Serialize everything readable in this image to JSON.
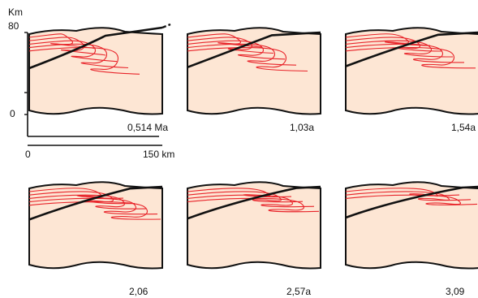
{
  "axes": {
    "y_unit": "Km",
    "y_top": "80",
    "y_bottom": "0",
    "scale_start": "0",
    "scale_end": "150 km"
  },
  "panels": [
    {
      "label": "0,514 Ma",
      "contours": 5,
      "stage": 0
    },
    {
      "label": "1,03a",
      "contours": 5,
      "stage": 1
    },
    {
      "label": "1,54a",
      "contours": 5,
      "stage": 2
    },
    {
      "label": "2,06",
      "contours": 5,
      "stage": 3
    },
    {
      "label": "2,57a",
      "contours": 4,
      "stage": 4
    },
    {
      "label": "3,09",
      "contours": 3,
      "stage": 5
    }
  ],
  "colors": {
    "fill": "#fde6d4",
    "contour": "#e8242a",
    "outline": "#111111"
  }
}
